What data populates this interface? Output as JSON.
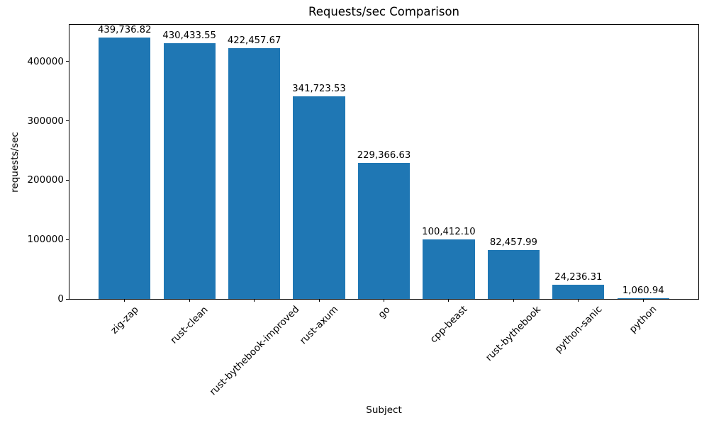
{
  "chart_data": {
    "type": "bar",
    "title": "Requests/sec Comparison",
    "xlabel": "Subject",
    "ylabel": "requests/sec",
    "categories": [
      "zig-zap",
      "rust-clean",
      "rust-bythebook-improved",
      "rust-axum",
      "go",
      "cpp-beast",
      "rust-bythebook",
      "python-sanic",
      "python"
    ],
    "values": [
      439736.82,
      430433.55,
      422457.67,
      341723.53,
      229366.63,
      100412.1,
      82457.99,
      24236.31,
      1060.94
    ],
    "value_labels": [
      "439,736.82",
      "430,433.55",
      "422,457.67",
      "341,723.53",
      "229,366.63",
      "100,412.10",
      "82,457.99",
      "24,236.31",
      "1,060.94"
    ],
    "yticks": [
      0,
      100000,
      200000,
      300000,
      400000
    ],
    "ytick_labels": [
      "0",
      "100000",
      "200000",
      "300000",
      "400000"
    ],
    "ylim": [
      0,
      461723.66
    ],
    "bar_color": "#1f77b4",
    "grid": false,
    "legend_position": "none",
    "x_tick_rotation_deg": 45
  }
}
